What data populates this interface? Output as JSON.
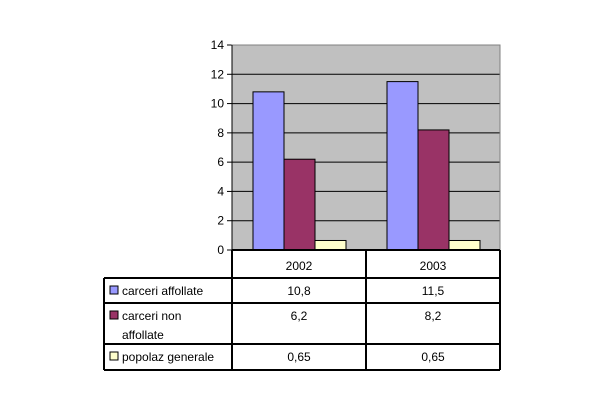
{
  "chart_data": {
    "type": "bar",
    "categories": [
      "2002",
      "2003"
    ],
    "series": [
      {
        "name": "carceri affollate",
        "name_lines": [
          "carceri affollate"
        ],
        "values": [
          10.8,
          11.5
        ],
        "labels": [
          "10,8",
          "11,5"
        ],
        "color": "#9999ff"
      },
      {
        "name": "carceri non affollate",
        "name_lines": [
          "carceri non",
          "affollate"
        ],
        "values": [
          6.2,
          8.2
        ],
        "labels": [
          "6,2",
          "8,2"
        ],
        "color": "#993366"
      },
      {
        "name": "popolaz generale",
        "name_lines": [
          "popolaz generale"
        ],
        "values": [
          0.65,
          0.65
        ],
        "labels": [
          "0,65",
          "0,65"
        ],
        "color": "#ffffcc"
      }
    ],
    "ylim": [
      0,
      14
    ],
    "yticks": [
      0,
      2,
      4,
      6,
      8,
      10,
      12,
      14
    ],
    "plot_background": "#c0c0c0",
    "grid": true,
    "legend": "data-table"
  }
}
